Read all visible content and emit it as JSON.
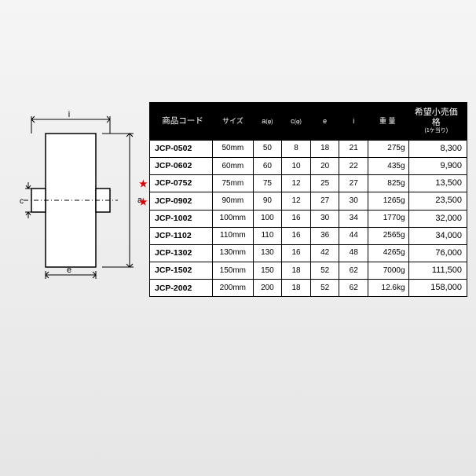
{
  "diagram": {
    "labels": {
      "i_top": "i",
      "a_right": "a",
      "c_left": "c",
      "e_bottom": "e"
    },
    "stroke_color": "#000000",
    "fill_color": "#ffffff"
  },
  "table": {
    "headers": {
      "code": "商品コード",
      "size": "サイズ",
      "a": "a",
      "a_sub": "(φ)",
      "c": "c",
      "c_sub": "(φ)",
      "e": "e",
      "i": "i",
      "weight": "重 量",
      "price": "希望小売価格",
      "price_sub": "(1ケ当り)"
    },
    "header_bg": "#000000",
    "header_fg": "#ffffff",
    "border_color": "#000000",
    "star_color": "#dd0000",
    "rows": [
      {
        "star": false,
        "code": "JCP-0502",
        "size": "50mm",
        "a": "50",
        "c": "8",
        "e": "18",
        "i": "21",
        "weight": "275g",
        "price": "8,300"
      },
      {
        "star": false,
        "code": "JCP-0602",
        "size": "60mm",
        "a": "60",
        "c": "10",
        "e": "20",
        "i": "22",
        "weight": "435g",
        "price": "9,900"
      },
      {
        "star": true,
        "code": "JCP-0752",
        "size": "75mm",
        "a": "75",
        "c": "12",
        "e": "25",
        "i": "27",
        "weight": "825g",
        "price": "13,500"
      },
      {
        "star": true,
        "code": "JCP-0902",
        "size": "90mm",
        "a": "90",
        "c": "12",
        "e": "27",
        "i": "30",
        "weight": "1265g",
        "price": "23,500"
      },
      {
        "star": false,
        "code": "JCP-1002",
        "size": "100mm",
        "a": "100",
        "c": "16",
        "e": "30",
        "i": "34",
        "weight": "1770g",
        "price": "32,000"
      },
      {
        "star": false,
        "code": "JCP-1102",
        "size": "110mm",
        "a": "110",
        "c": "16",
        "e": "36",
        "i": "44",
        "weight": "2565g",
        "price": "34,000"
      },
      {
        "star": false,
        "code": "JCP-1302",
        "size": "130mm",
        "a": "130",
        "c": "16",
        "e": "42",
        "i": "48",
        "weight": "4265g",
        "price": "76,000"
      },
      {
        "star": false,
        "code": "JCP-1502",
        "size": "150mm",
        "a": "150",
        "c": "18",
        "e": "52",
        "i": "62",
        "weight": "7000g",
        "price": "111,500"
      },
      {
        "star": false,
        "code": "JCP-2002",
        "size": "200mm",
        "a": "200",
        "c": "18",
        "e": "52",
        "i": "62",
        "weight": "12.6kg",
        "price": "158,000"
      }
    ]
  }
}
